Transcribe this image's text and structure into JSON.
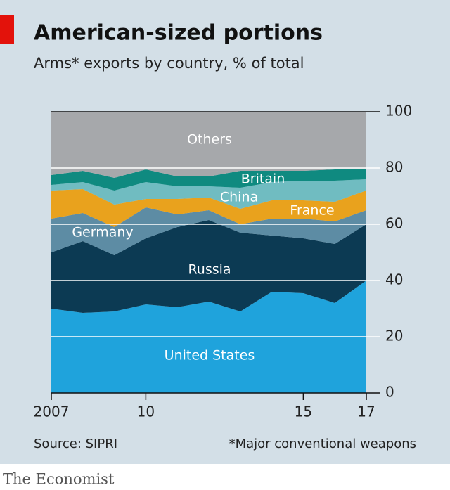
{
  "chart_data": {
    "type": "stacked-area",
    "title": "American-sized portions",
    "subtitle": "Arms* exports by country, % of total",
    "source": "Source: SIPRI",
    "footnote": "*Major conventional weapons",
    "brand": "The Economist",
    "x": [
      2007,
      2008,
      2009,
      2010,
      2011,
      2012,
      2013,
      2014,
      2015,
      2016,
      2017
    ],
    "xlim": [
      2007,
      2017
    ],
    "xticks": [
      2007,
      {
        "value": 2010,
        "label": "10"
      },
      {
        "value": 2015,
        "label": "15"
      },
      {
        "value": 2017,
        "label": "17"
      }
    ],
    "ylim": [
      0,
      100
    ],
    "yticks": [
      0,
      20,
      40,
      60,
      80,
      100
    ],
    "grid": true,
    "series": [
      {
        "name": "United States",
        "color": "#1fa3dc",
        "values": [
          30,
          28.5,
          29,
          31.5,
          30.5,
          32.5,
          29,
          36,
          35.5,
          32,
          40
        ]
      },
      {
        "name": "Russia",
        "color": "#0c3a53",
        "values": [
          20,
          25.5,
          20,
          23.5,
          28.5,
          29,
          28,
          20,
          19.5,
          21,
          20
        ]
      },
      {
        "name": "Germany",
        "color": "#5d8ca4",
        "values": [
          12,
          10,
          10,
          11,
          4.5,
          3.5,
          3,
          6,
          7,
          8,
          5
        ]
      },
      {
        "name": "France",
        "color": "#e9a21d",
        "values": [
          10,
          8.5,
          8,
          3,
          5.5,
          4.5,
          5.5,
          6.5,
          6.5,
          7,
          7
        ]
      },
      {
        "name": "China",
        "color": "#70bcc1",
        "values": [
          2,
          2.5,
          5,
          6,
          4.5,
          4,
          7.5,
          6.5,
          7,
          7.5,
          4
        ]
      },
      {
        "name": "Britain",
        "color": "#0f8a80",
        "values": [
          3.5,
          4,
          4.5,
          4.5,
          3.5,
          3.5,
          6,
          4,
          3.5,
          4,
          3.5
        ]
      },
      {
        "name": "Others",
        "color": "#a6a8ab",
        "values": [
          22.5,
          21,
          23.5,
          20.5,
          23,
          23,
          21,
          21,
          21,
          20.5,
          20.5
        ]
      }
    ]
  }
}
